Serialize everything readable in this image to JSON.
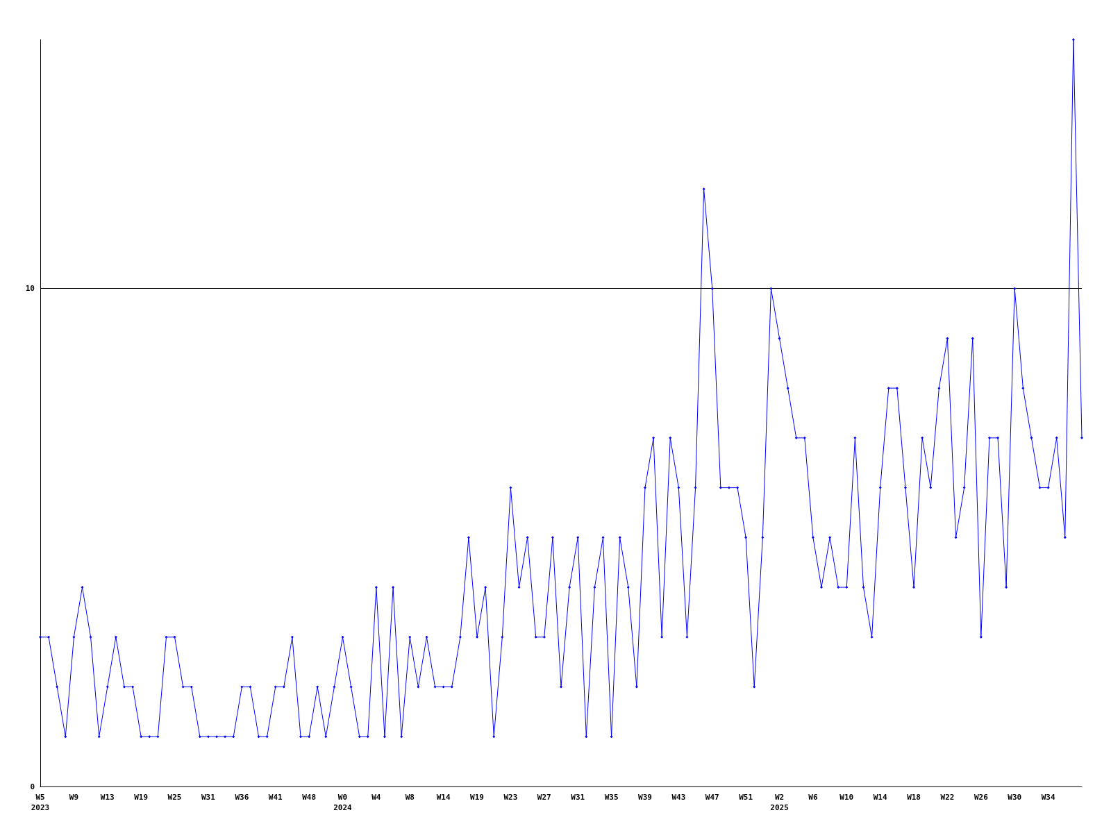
{
  "chart_data": {
    "type": "line",
    "categories": [
      "W5\n2023",
      null,
      null,
      null,
      "W9",
      null,
      null,
      null,
      "W13",
      null,
      null,
      null,
      "W19",
      null,
      null,
      null,
      "W25",
      null,
      null,
      null,
      "W31",
      null,
      null,
      null,
      "W36",
      null,
      null,
      null,
      "W41",
      null,
      null,
      null,
      "W48",
      null,
      null,
      null,
      "W0\n2024",
      null,
      null,
      null,
      "W4",
      null,
      null,
      null,
      "W8",
      null,
      null,
      null,
      "W14",
      null,
      null,
      null,
      "W19",
      null,
      null,
      null,
      "W23",
      null,
      null,
      null,
      "W27",
      null,
      null,
      null,
      "W31",
      null,
      null,
      null,
      "W35",
      null,
      null,
      null,
      "W39",
      null,
      null,
      null,
      "W43",
      null,
      null,
      null,
      "W47",
      null,
      null,
      null,
      "W51",
      null,
      null,
      null,
      "W2\n2025",
      null,
      null,
      null,
      "W6",
      null,
      null,
      null,
      "W10",
      null,
      null,
      null,
      "W14",
      null,
      null,
      null,
      "W18",
      null,
      null,
      null,
      "W22",
      null,
      null,
      null,
      "W26",
      null,
      null,
      null,
      "W30",
      null,
      null,
      null,
      "W34",
      null,
      null,
      null,
      null
    ],
    "series": [
      {
        "color": "#0000ff",
        "values": [
          3,
          3,
          2,
          1,
          3,
          4,
          3,
          1,
          2,
          3,
          2,
          2,
          1,
          1,
          1,
          3,
          3,
          2,
          2,
          1,
          1,
          1,
          1,
          1,
          2,
          2,
          1,
          1,
          2,
          2,
          3,
          1,
          1,
          2,
          1,
          2,
          3,
          2,
          1,
          1,
          4,
          1,
          4,
          1,
          3,
          2,
          3,
          2,
          2,
          2,
          3,
          5,
          3,
          4,
          1,
          3,
          6,
          4,
          5,
          3,
          3,
          5,
          2,
          4,
          5,
          1,
          4,
          5,
          1,
          5,
          4,
          2,
          6,
          7,
          3,
          7,
          6,
          3,
          6,
          12,
          10,
          6,
          6,
          6,
          5,
          2,
          5,
          10,
          9,
          8,
          7,
          7,
          5,
          4,
          5,
          4,
          4,
          7,
          4,
          3,
          6,
          8,
          8,
          6,
          4,
          7,
          6,
          8,
          9,
          5,
          6,
          9,
          3,
          7,
          7,
          4,
          10,
          8,
          7,
          6,
          6,
          7,
          5,
          15,
          7
        ]
      }
    ],
    "ylim": [
      0,
      15
    ],
    "yticks": [
      0,
      10
    ],
    "grid": "y",
    "marker": "diamond",
    "line_style": "solid"
  }
}
